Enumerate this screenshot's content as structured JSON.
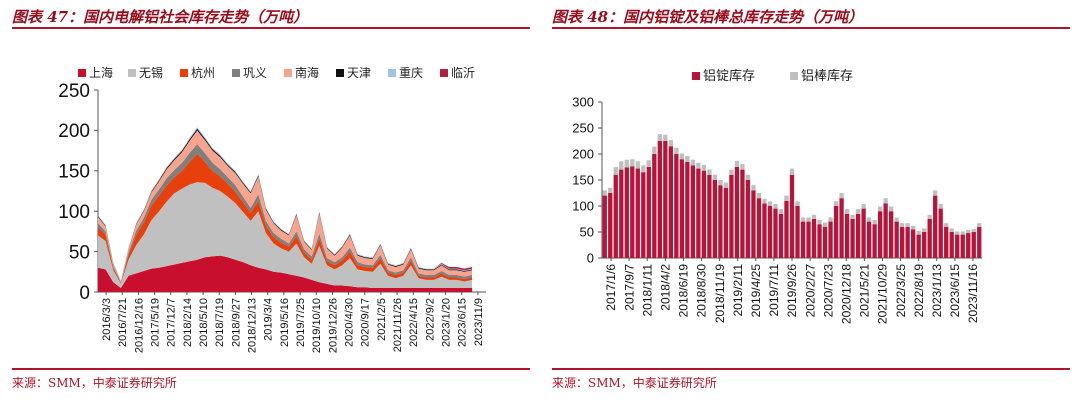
{
  "colors": {
    "accent": "#b0132a",
    "title": "#9a0b1c"
  },
  "left": {
    "title": "图表 47：国内电解铝社会库存走势（万吨）",
    "source": "来源：SMM，中泰证券研究所",
    "chart_data": {
      "type": "area",
      "stacked": true,
      "ylim": [
        0,
        250
      ],
      "yticks": [
        0,
        50,
        100,
        150,
        200,
        250
      ],
      "xticks": [
        "2016/3/3",
        "2016/7/21",
        "2016/12/16",
        "2017/5/19",
        "2017/12/7",
        "2018/2/14",
        "2018/5/10",
        "2018/7/19",
        "2018/9/27",
        "2018/12/13",
        "2019/3/4",
        "2019/5/16",
        "2019/7/25",
        "2019/10/10",
        "2019/12/26",
        "2020/4/30",
        "2020/9/17",
        "2021/2/5",
        "2021/11/26",
        "2022/4/15",
        "2022/9/2",
        "2023/1/20",
        "2023/6/15",
        "2023/11/9"
      ],
      "legend": [
        "上海",
        "无锡",
        "杭州",
        "巩义",
        "南海",
        "天津",
        "重庆",
        "临沂"
      ],
      "series_colors": [
        "#c8102e",
        "#c0c0c0",
        "#e8400c",
        "#7f7f7f",
        "#f7a48f",
        "#111111",
        "#9dc3e6",
        "#b41e3c"
      ],
      "series": [
        {
          "name": "上海",
          "values": [
            30,
            28,
            12,
            5,
            20,
            23,
            26,
            29,
            30,
            32,
            34,
            36,
            38,
            40,
            43,
            44,
            45,
            43,
            40,
            37,
            33,
            30,
            28,
            25,
            24,
            22,
            20,
            18,
            15,
            12,
            10,
            8,
            8,
            7,
            6,
            6,
            5,
            5,
            5,
            5,
            5,
            5,
            5,
            5,
            5,
            5,
            5,
            5,
            5,
            5
          ]
        },
        {
          "name": "无锡",
          "values": [
            40,
            35,
            15,
            5,
            20,
            35,
            45,
            60,
            70,
            80,
            88,
            92,
            95,
            96,
            92,
            85,
            80,
            75,
            70,
            62,
            55,
            70,
            45,
            35,
            30,
            28,
            40,
            25,
            20,
            45,
            23,
            20,
            25,
            35,
            22,
            20,
            20,
            30,
            15,
            12,
            15,
            28,
            12,
            10,
            10,
            14,
            10,
            10,
            8,
            10
          ]
        },
        {
          "name": "杭州",
          "values": [
            10,
            8,
            3,
            1,
            6,
            13,
            15,
            18,
            19,
            20,
            20,
            22,
            28,
            35,
            26,
            21,
            18,
            16,
            14,
            12,
            10,
            13,
            9,
            8,
            7,
            6,
            9,
            6,
            5,
            9,
            5,
            5,
            6,
            8,
            5,
            5,
            5,
            7,
            4,
            4,
            4,
            6,
            3,
            3,
            3,
            4,
            3,
            3,
            3,
            3
          ]
        },
        {
          "name": "巩义",
          "values": [
            5,
            4,
            2,
            1,
            3,
            5,
            6,
            7,
            8,
            9,
            9,
            10,
            11,
            12,
            11,
            10,
            9,
            8,
            8,
            7,
            6,
            8,
            6,
            5,
            5,
            4,
            6,
            4,
            4,
            6,
            4,
            4,
            4,
            5,
            4,
            3,
            3,
            4,
            3,
            3,
            3,
            4,
            3,
            3,
            3,
            3,
            3,
            3,
            3,
            3
          ]
        },
        {
          "name": "南海",
          "values": [
            8,
            6,
            3,
            1,
            4,
            7,
            8,
            9,
            10,
            11,
            12,
            13,
            15,
            17,
            16,
            15,
            15,
            14,
            15,
            16,
            18,
            22,
            14,
            12,
            10,
            10,
            20,
            9,
            8,
            25,
            12,
            8,
            12,
            15,
            8,
            8,
            8,
            12,
            7,
            7,
            7,
            10,
            6,
            6,
            6,
            7,
            6,
            6,
            6,
            6
          ]
        },
        {
          "name": "天津",
          "values": [
            1,
            1,
            0.5,
            0.3,
            0.7,
            1,
            1,
            1.3,
            1.5,
            1.6,
            1.7,
            1.8,
            2,
            2.2,
            2,
            1.8,
            1.7,
            1.6,
            1.5,
            1.5,
            1.4,
            1.6,
            1.3,
            1.2,
            1.2,
            1.1,
            1.4,
            1,
            1,
            1.5,
            1,
            1,
            1.1,
            1.3,
            1,
            1,
            1,
            1.2,
            1,
            1,
            1,
            1.1,
            1,
            1,
            1,
            1,
            1,
            1,
            1,
            1
          ]
        },
        {
          "name": "重庆",
          "values": [
            1,
            1,
            0.5,
            0.3,
            0.7,
            1,
            1,
            1.2,
            1.3,
            1.4,
            1.5,
            1.6,
            1.7,
            1.8,
            1.7,
            1.6,
            1.5,
            1.4,
            1.4,
            1.3,
            1.3,
            1.4,
            1.2,
            1.1,
            1.1,
            1,
            1.2,
            1,
            1,
            1.3,
            1,
            1,
            1,
            1.2,
            1,
            1,
            1,
            1.1,
            1,
            1,
            1,
            1,
            1,
            1,
            1,
            1,
            1,
            1,
            1,
            1
          ]
        },
        {
          "name": "临沂",
          "values": [
            0,
            0,
            0,
            0,
            0,
            0,
            0,
            0,
            0,
            0,
            0,
            0,
            0,
            0,
            0,
            0,
            0,
            0,
            0,
            0,
            0,
            0,
            0,
            0,
            0,
            0,
            0,
            0,
            0,
            0,
            0,
            0,
            0,
            0,
            0,
            0,
            0,
            0,
            0,
            0,
            0,
            0,
            0,
            0,
            0,
            1,
            2,
            2,
            2,
            2
          ]
        }
      ]
    }
  },
  "right": {
    "title": "图表 48：国内铝锭及铝棒总库存走势（万吨）",
    "source": "来源：SMM，中泰证券研究所",
    "chart_data": {
      "type": "bar",
      "stacked": true,
      "ylim": [
        0,
        300
      ],
      "yticks": [
        0,
        50,
        100,
        150,
        200,
        250,
        300
      ],
      "xticks": [
        "2017/1/6",
        "2017/9/7",
        "2018/1/11",
        "2018/4/2",
        "2018/6/19",
        "2018/8/30",
        "2018/11/19",
        "2019/2/11",
        "2019/4/25",
        "2019/7/11",
        "2019/9/26",
        "2020/2/27",
        "2020/7/23",
        "2020/12/18",
        "2021/5/21",
        "2021/10/29",
        "2022/3/25",
        "2022/8/19",
        "2023/1/13",
        "2023/6/15",
        "2023/11/16"
      ],
      "legend": [
        "铝锭库存",
        "铝棒库存"
      ],
      "series_colors": [
        "#b8133a",
        "#bfbfbf"
      ],
      "series": [
        {
          "name": "铝锭库存",
          "values": [
            120,
            125,
            160,
            170,
            174,
            176,
            172,
            165,
            175,
            200,
            225,
            225,
            215,
            200,
            190,
            185,
            178,
            172,
            168,
            160,
            150,
            140,
            135,
            160,
            175,
            170,
            150,
            130,
            115,
            105,
            100,
            95,
            85,
            110,
            160,
            100,
            70,
            70,
            75,
            65,
            60,
            70,
            100,
            115,
            85,
            75,
            85,
            95,
            70,
            65,
            90,
            105,
            90,
            70,
            60,
            60,
            55,
            45,
            50,
            75,
            120,
            95,
            60,
            50,
            45,
            45,
            48,
            50,
            60
          ]
        },
        {
          "name": "铝棒库存",
          "values": [
            10,
            10,
            15,
            16,
            15,
            14,
            14,
            13,
            13,
            14,
            13,
            12,
            12,
            12,
            11,
            11,
            11,
            11,
            11,
            10,
            10,
            10,
            10,
            10,
            12,
            11,
            10,
            10,
            10,
            9,
            9,
            9,
            9,
            10,
            12,
            9,
            8,
            8,
            8,
            8,
            8,
            8,
            9,
            10,
            9,
            8,
            9,
            9,
            8,
            8,
            9,
            10,
            9,
            8,
            7,
            7,
            7,
            7,
            7,
            8,
            10,
            9,
            7,
            7,
            6,
            6,
            6,
            6,
            7
          ]
        }
      ]
    }
  }
}
